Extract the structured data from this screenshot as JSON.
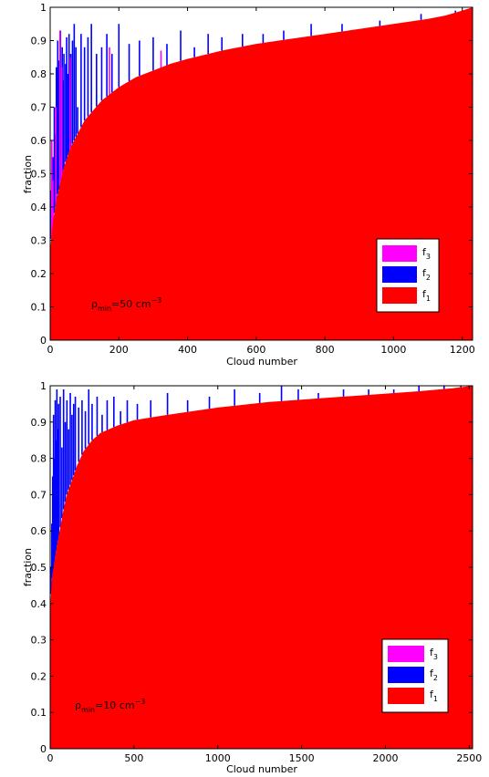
{
  "chart_data": [
    {
      "type": "bar",
      "stacked": true,
      "sorted_by": "f1",
      "xlabel": "Cloud number",
      "ylabel": "fraction",
      "xlim": [
        0,
        1230
      ],
      "ylim": [
        0,
        1
      ],
      "xticks": [
        0,
        200,
        400,
        600,
        800,
        1000,
        1200
      ],
      "yticks": [
        0,
        0.1,
        0.2,
        0.3,
        0.4,
        0.5,
        0.6,
        0.7,
        0.8,
        0.9,
        1
      ],
      "annotation": {
        "base": "ρ",
        "sub": "min",
        "mid": "=50 cm",
        "sup": "−3"
      },
      "legend_position": "lower-right",
      "n_clouds": 1230,
      "series": [
        {
          "name": "f",
          "sub": "3",
          "color": "#ff00ff"
        },
        {
          "name": "f",
          "sub": "2",
          "color": "#0000ff"
        },
        {
          "name": "f",
          "sub": "1",
          "color": "#ff0000"
        }
      ],
      "f1_curve": {
        "x": [
          0,
          1,
          5,
          10,
          20,
          40,
          60,
          80,
          100,
          150,
          200,
          250,
          300,
          350,
          400,
          500,
          600,
          700,
          800,
          900,
          1000,
          1100,
          1150,
          1200,
          1230
        ],
        "y": [
          0.21,
          0.28,
          0.33,
          0.37,
          0.43,
          0.52,
          0.58,
          0.62,
          0.66,
          0.72,
          0.76,
          0.79,
          0.81,
          0.83,
          0.845,
          0.87,
          0.89,
          0.905,
          0.92,
          0.935,
          0.95,
          0.965,
          0.975,
          0.99,
          1.0
        ]
      },
      "f2_tops": {
        "x": [
          3,
          8,
          12,
          15,
          18,
          22,
          25,
          28,
          30,
          35,
          38,
          40,
          45,
          48,
          52,
          55,
          60,
          65,
          70,
          75,
          80,
          90,
          100,
          110,
          120,
          135,
          150,
          165,
          180,
          200,
          230,
          260,
          300,
          340,
          380,
          420,
          460,
          500,
          560,
          620,
          680,
          760,
          850,
          960,
          1080,
          1180
        ],
        "y": [
          0.45,
          0.55,
          0.7,
          0.62,
          0.82,
          0.9,
          0.84,
          0.75,
          0.93,
          0.88,
          0.78,
          0.86,
          0.83,
          0.91,
          0.8,
          0.92,
          0.86,
          0.9,
          0.95,
          0.88,
          0.7,
          0.92,
          0.88,
          0.91,
          0.95,
          0.86,
          0.88,
          0.92,
          0.86,
          0.95,
          0.89,
          0.9,
          0.91,
          0.89,
          0.93,
          0.88,
          0.92,
          0.91,
          0.92,
          0.92,
          0.93,
          0.95,
          0.95,
          0.96,
          0.98,
          0.99
        ]
      },
      "f3_tops": {
        "x": [
          2,
          5,
          14,
          26,
          31,
          55,
          170,
          320
        ],
        "y": [
          0.6,
          0.48,
          0.7,
          0.93,
          0.82,
          0.85,
          0.88,
          0.87
        ]
      }
    },
    {
      "type": "bar",
      "stacked": true,
      "sorted_by": "f1",
      "xlabel": "Cloud number",
      "ylabel": "fraction",
      "xlim": [
        0,
        2520
      ],
      "ylim": [
        0,
        1
      ],
      "xticks": [
        0,
        500,
        1000,
        1500,
        2000,
        2500
      ],
      "yticks": [
        0,
        0.1,
        0.2,
        0.3,
        0.4,
        0.5,
        0.6,
        0.7,
        0.8,
        0.9,
        1
      ],
      "annotation": {
        "base": "ρ",
        "sub": "min",
        "mid": "=10 cm",
        "sup": "−3"
      },
      "legend_position": "lower-right",
      "n_clouds": 2520,
      "series": [
        {
          "name": "f",
          "sub": "3",
          "color": "#ff00ff"
        },
        {
          "name": "f",
          "sub": "2",
          "color": "#0000ff"
        },
        {
          "name": "f",
          "sub": "1",
          "color": "#ff0000"
        }
      ],
      "f1_curve": {
        "x": [
          0,
          2,
          10,
          20,
          40,
          60,
          80,
          100,
          130,
          160,
          200,
          250,
          300,
          400,
          500,
          700,
          1000,
          1300,
          1600,
          1900,
          2200,
          2400,
          2520
        ],
        "y": [
          0.36,
          0.4,
          0.47,
          0.5,
          0.56,
          0.61,
          0.66,
          0.7,
          0.74,
          0.78,
          0.82,
          0.85,
          0.87,
          0.89,
          0.905,
          0.92,
          0.94,
          0.955,
          0.965,
          0.975,
          0.985,
          0.993,
          1.0
        ]
      },
      "f2_tops": {
        "x": [
          5,
          10,
          15,
          20,
          25,
          30,
          35,
          40,
          45,
          50,
          60,
          70,
          80,
          90,
          100,
          110,
          120,
          130,
          140,
          150,
          170,
          190,
          210,
          230,
          250,
          280,
          310,
          340,
          380,
          420,
          460,
          520,
          600,
          700,
          820,
          950,
          1100,
          1250,
          1380,
          1480,
          1600,
          1750,
          1900,
          2050,
          2200,
          2350,
          2450
        ],
        "y": [
          0.5,
          0.62,
          0.75,
          0.92,
          0.8,
          0.96,
          0.85,
          0.99,
          0.88,
          0.95,
          0.97,
          0.83,
          0.99,
          0.9,
          0.96,
          0.88,
          0.98,
          0.92,
          0.95,
          0.97,
          0.94,
          0.96,
          0.93,
          0.99,
          0.95,
          0.97,
          0.92,
          0.96,
          0.97,
          0.93,
          0.96,
          0.95,
          0.96,
          0.98,
          0.96,
          0.97,
          0.99,
          0.98,
          1.0,
          0.99,
          0.98,
          0.99,
          0.99,
          0.99,
          1.0,
          1.0,
          1.0
        ]
      },
      "f3_tops": {
        "x": [],
        "y": []
      }
    }
  ]
}
